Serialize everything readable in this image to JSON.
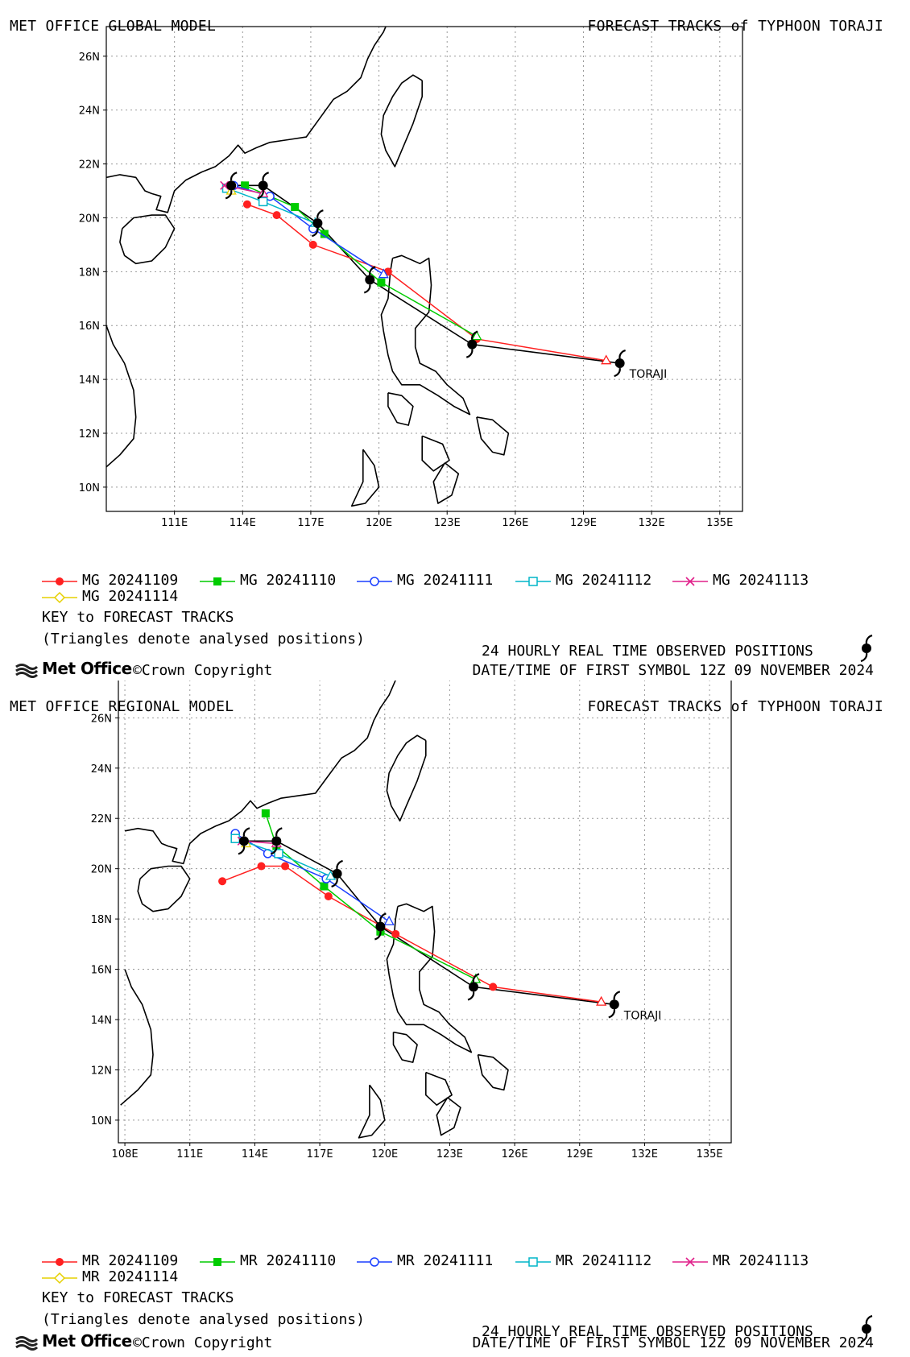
{
  "icons": {
    "observed_symbol": "typhoon-icon",
    "brand_logo": "met-office-logo-icon"
  },
  "chart_data": [
    {
      "type": "line",
      "model_title": "MET OFFICE GLOBAL MODEL",
      "track_title": "FORECAST TRACKS of TYPHOON TORAJI",
      "xlim": [
        108,
        136
      ],
      "ylim": [
        9.1,
        27.1
      ],
      "x_ticks": [
        111,
        114,
        117,
        120,
        123,
        126,
        129,
        132,
        135
      ],
      "x_tick_labels": [
        "111E",
        "114E",
        "117E",
        "120E",
        "123E",
        "126E",
        "129E",
        "132E",
        "135E"
      ],
      "y_ticks": [
        10,
        12,
        14,
        16,
        18,
        20,
        22,
        24,
        26
      ],
      "y_tick_labels": [
        "10N",
        "12N",
        "14N",
        "16N",
        "18N",
        "20N",
        "22N",
        "24N",
        "26N"
      ],
      "grid": true,
      "storm_label": "TORAJI",
      "observed": [
        [
          130.6,
          14.6
        ],
        [
          124.1,
          15.3
        ],
        [
          119.6,
          17.7
        ],
        [
          117.3,
          19.8
        ],
        [
          114.9,
          21.2
        ],
        [
          113.5,
          21.2
        ]
      ],
      "series": [
        {
          "name": "MG 20241109",
          "color": "#ff2020",
          "marker": "filled-circle",
          "analysed": [
            130.0,
            14.7
          ],
          "points": [
            [
              124.3,
              15.5
            ],
            [
              120.4,
              18.0
            ],
            [
              117.1,
              19.0
            ],
            [
              115.5,
              20.1
            ],
            [
              114.2,
              20.5
            ]
          ]
        },
        {
          "name": "MG 20241110",
          "color": "#00cc00",
          "marker": "filled-square",
          "analysed": [
            124.3,
            15.6
          ],
          "points": [
            [
              120.1,
              17.6
            ],
            [
              117.6,
              19.4
            ],
            [
              116.3,
              20.4
            ],
            [
              114.1,
              21.2
            ]
          ]
        },
        {
          "name": "MG 20241111",
          "color": "#1a3fff",
          "marker": "open-circle",
          "analysed": [
            120.2,
            17.9
          ],
          "points": [
            [
              117.1,
              19.6
            ],
            [
              115.2,
              20.8
            ],
            [
              113.6,
              21.2
            ]
          ]
        },
        {
          "name": "MG 20241112",
          "color": "#00b5c8",
          "marker": "open-square",
          "analysed": [
            117.2,
            19.8
          ],
          "points": [
            [
              114.9,
              20.6
            ],
            [
              113.3,
              21.1
            ]
          ]
        },
        {
          "name": "MG 20241113",
          "color": "#e0208a",
          "marker": "cross",
          "analysed": [
            114.9,
            20.9
          ],
          "points": [
            [
              113.2,
              21.2
            ]
          ]
        },
        {
          "name": "MG 20241114",
          "color": "#e6d000",
          "marker": "open-diamond",
          "analysed": [
            113.5,
            21.0
          ],
          "points": []
        }
      ]
    },
    {
      "type": "line",
      "model_title": "MET OFFICE REGIONAL MODEL",
      "track_title": "FORECAST TRACKS of TYPHOON TORAJI",
      "xlim": [
        107.7,
        136
      ],
      "ylim": [
        9.1,
        27.9
      ],
      "x_ticks": [
        108,
        111,
        114,
        117,
        120,
        123,
        126,
        129,
        132,
        135
      ],
      "x_tick_labels": [
        "108E",
        "111E",
        "114E",
        "117E",
        "120E",
        "123E",
        "126E",
        "129E",
        "132E",
        "135E"
      ],
      "y_ticks": [
        10,
        12,
        14,
        16,
        18,
        20,
        22,
        24,
        26
      ],
      "y_tick_labels": [
        "10N",
        "12N",
        "14N",
        "16N",
        "18N",
        "20N",
        "22N",
        "24N",
        "26N"
      ],
      "grid": true,
      "storm_label": "TORAJI",
      "observed": [
        [
          130.6,
          14.6
        ],
        [
          124.1,
          15.3
        ],
        [
          119.8,
          17.7
        ],
        [
          117.8,
          19.8
        ],
        [
          115.0,
          21.1
        ],
        [
          113.5,
          21.1
        ]
      ],
      "series": [
        {
          "name": "MR 20241109",
          "color": "#ff2020",
          "marker": "filled-circle",
          "analysed": [
            130.0,
            14.7
          ],
          "points": [
            [
              125.0,
              15.3
            ],
            [
              120.5,
              17.4
            ],
            [
              117.4,
              18.9
            ],
            [
              115.4,
              20.1
            ],
            [
              114.3,
              20.1
            ],
            [
              112.5,
              19.5
            ]
          ]
        },
        {
          "name": "MR 20241110",
          "color": "#00cc00",
          "marker": "filled-square",
          "analysed": [
            124.2,
            15.6
          ],
          "points": [
            [
              119.8,
              17.5
            ],
            [
              117.2,
              19.3
            ],
            [
              115.0,
              20.9
            ],
            [
              114.5,
              22.2
            ]
          ]
        },
        {
          "name": "MR 20241111",
          "color": "#1a3fff",
          "marker": "open-circle",
          "analysed": [
            120.2,
            17.9
          ],
          "points": [
            [
              117.3,
              19.6
            ],
            [
              114.6,
              20.6
            ],
            [
              113.1,
              21.4
            ]
          ]
        },
        {
          "name": "MR 20241112",
          "color": "#00b5c8",
          "marker": "open-square",
          "analysed": [
            117.5,
            19.7
          ],
          "points": [
            [
              115.1,
              20.6
            ],
            [
              113.1,
              21.2
            ]
          ]
        },
        {
          "name": "MR 20241113",
          "color": "#e0208a",
          "marker": "cross",
          "analysed": [
            115.0,
            21.0
          ],
          "points": [
            [
              113.4,
              21.1
            ]
          ]
        },
        {
          "name": "MR 20241114",
          "color": "#e6d000",
          "marker": "open-diamond",
          "analysed": [
            113.6,
            21.0
          ],
          "points": []
        }
      ]
    }
  ],
  "panels": [
    {
      "model_title": "MET OFFICE GLOBAL MODEL",
      "track_title": "FORECAST TRACKS of TYPHOON TORAJI",
      "key_title": "KEY to FORECAST TRACKS",
      "triangles_note": "(Triangles denote analysed positions)",
      "observed_text": "24 HOURLY REAL TIME OBSERVED POSITIONS",
      "brand": "Met Office",
      "copyright": "©Crown Copyright",
      "date_text": "DATE/TIME OF FIRST SYMBOL 12Z 09 NOVEMBER 2024"
    },
    {
      "model_title": "MET OFFICE REGIONAL MODEL",
      "track_title": "FORECAST TRACKS of TYPHOON TORAJI",
      "key_title": "KEY to FORECAST TRACKS",
      "triangles_note": "(Triangles denote analysed positions)",
      "observed_text": "24 HOURLY REAL TIME OBSERVED POSITIONS",
      "brand": "Met Office",
      "copyright": "©Crown Copyright",
      "date_text": "DATE/TIME OF FIRST SYMBOL 12Z 09 NOVEMBER 2024"
    }
  ]
}
